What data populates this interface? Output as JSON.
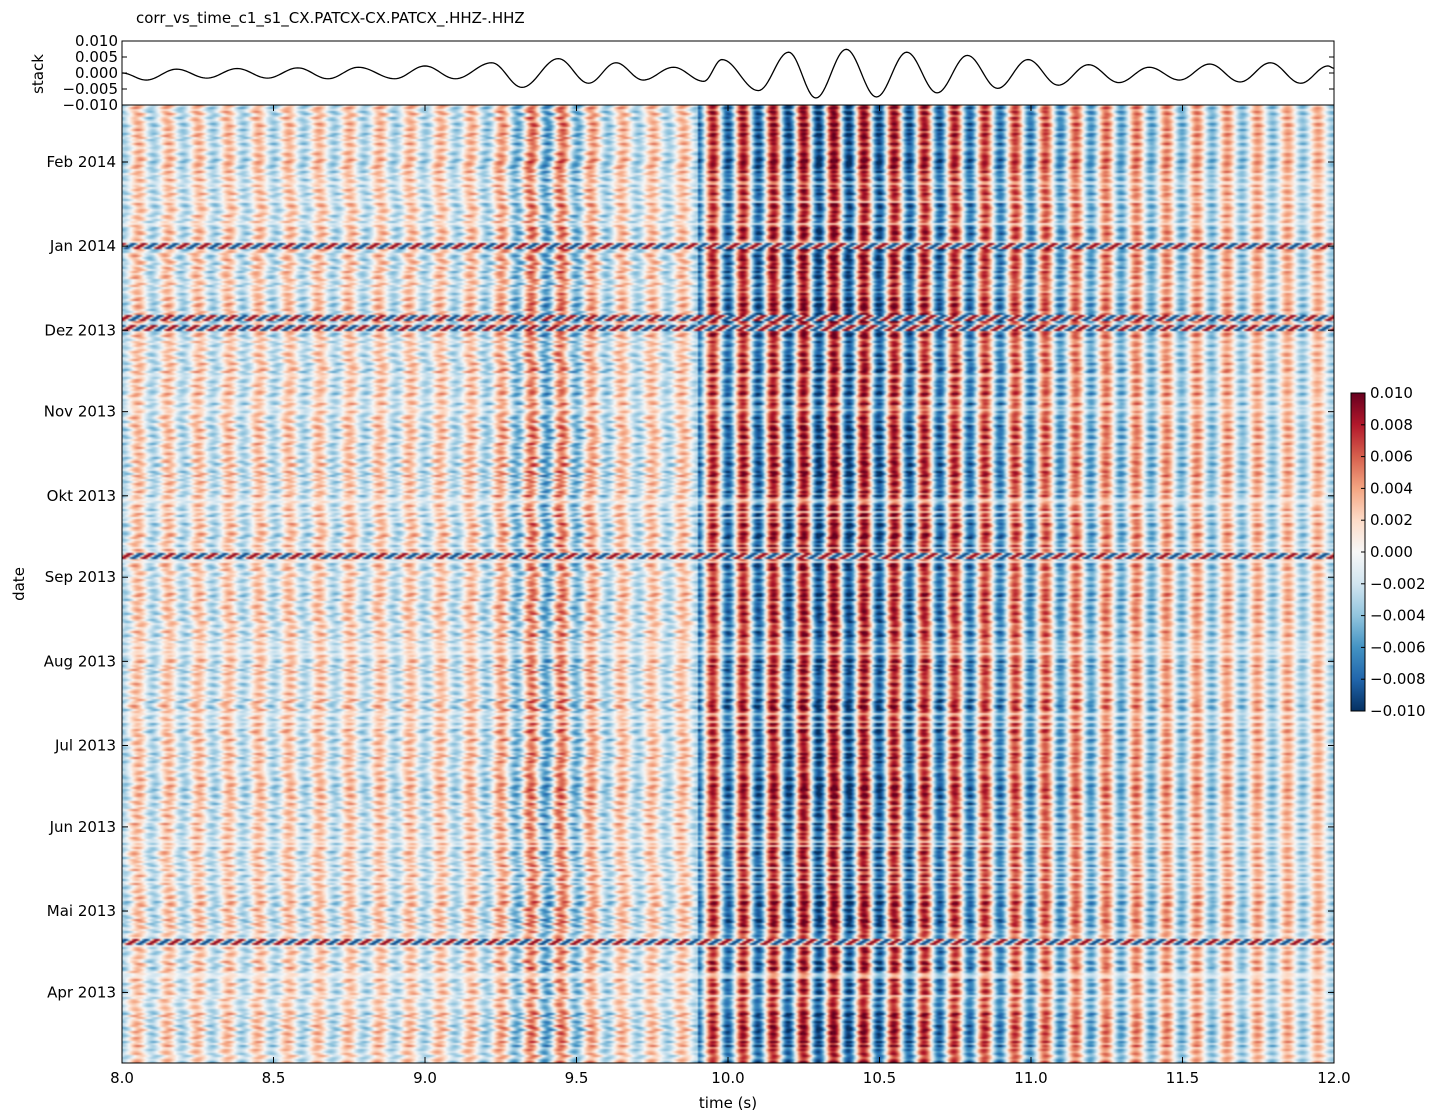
{
  "chart_data": {
    "type": "heatmap",
    "title": "corr_vs_time_c1_s1_CX.PATCX-CX.PATCX_.HHZ-.HHZ",
    "stack_panel": {
      "type": "line",
      "ylabel": "stack",
      "ylim": [
        -0.01,
        0.01
      ],
      "y_ticks": [
        "0.010",
        "0.005",
        "0.000",
        "−0.005",
        "−0.010"
      ],
      "y_tick_values": [
        0.01,
        0.005,
        0.0,
        -0.005,
        -0.01
      ],
      "x_range": [
        8.0,
        12.0
      ],
      "samples": [
        {
          "x": 8.0,
          "y": 0.0
        },
        {
          "x": 8.08,
          "y": -0.0022
        },
        {
          "x": 8.18,
          "y": 0.0012
        },
        {
          "x": 8.28,
          "y": -0.0016
        },
        {
          "x": 8.38,
          "y": 0.0014
        },
        {
          "x": 8.48,
          "y": -0.0016
        },
        {
          "x": 8.58,
          "y": 0.0016
        },
        {
          "x": 8.68,
          "y": -0.0018
        },
        {
          "x": 8.78,
          "y": 0.0018
        },
        {
          "x": 8.9,
          "y": -0.0018
        },
        {
          "x": 9.0,
          "y": 0.0022
        },
        {
          "x": 9.1,
          "y": -0.0018
        },
        {
          "x": 9.22,
          "y": 0.0032
        },
        {
          "x": 9.32,
          "y": -0.0045
        },
        {
          "x": 9.44,
          "y": 0.0045
        },
        {
          "x": 9.54,
          "y": -0.0032
        },
        {
          "x": 9.63,
          "y": 0.0032
        },
        {
          "x": 9.72,
          "y": -0.0022
        },
        {
          "x": 9.82,
          "y": 0.0018
        },
        {
          "x": 9.92,
          "y": -0.0026
        },
        {
          "x": 9.98,
          "y": 0.0042
        },
        {
          "x": 10.1,
          "y": -0.0055
        },
        {
          "x": 10.2,
          "y": 0.0065
        },
        {
          "x": 10.29,
          "y": -0.0078
        },
        {
          "x": 10.39,
          "y": 0.0074
        },
        {
          "x": 10.49,
          "y": -0.0075
        },
        {
          "x": 10.59,
          "y": 0.0065
        },
        {
          "x": 10.69,
          "y": -0.0062
        },
        {
          "x": 10.79,
          "y": 0.0055
        },
        {
          "x": 10.89,
          "y": -0.0048
        },
        {
          "x": 10.99,
          "y": 0.0042
        },
        {
          "x": 11.09,
          "y": -0.0038
        },
        {
          "x": 11.19,
          "y": 0.0026
        },
        {
          "x": 11.29,
          "y": -0.003
        },
        {
          "x": 11.39,
          "y": 0.0018
        },
        {
          "x": 11.49,
          "y": -0.0022
        },
        {
          "x": 11.59,
          "y": 0.0028
        },
        {
          "x": 11.69,
          "y": -0.0028
        },
        {
          "x": 11.79,
          "y": 0.0032
        },
        {
          "x": 11.89,
          "y": -0.0032
        },
        {
          "x": 11.98,
          "y": 0.0022
        },
        {
          "x": 12.0,
          "y": 0.0015
        }
      ]
    },
    "heatmap": {
      "xlabel": "time (s)",
      "ylabel": "date",
      "xlim": [
        8.0,
        12.0
      ],
      "x_ticks": [
        "8.0",
        "8.5",
        "9.0",
        "9.5",
        "10.0",
        "10.5",
        "11.0",
        "11.5",
        "12.0"
      ],
      "x_tick_values": [
        8.0,
        8.5,
        9.0,
        9.5,
        10.0,
        10.5,
        11.0,
        11.5,
        12.0
      ],
      "date_axis_days": [
        0,
        353
      ],
      "y_ticks": [
        "Apr 2013",
        "Mai 2013",
        "Jun 2013",
        "Jul 2013",
        "Aug 2013",
        "Sep 2013",
        "Okt 2013",
        "Nov 2013",
        "Dez 2013",
        "Jan 2014",
        "Feb 2014"
      ],
      "y_tick_days": [
        26,
        56,
        87,
        117,
        148,
        179,
        209,
        240,
        270,
        301,
        332
      ],
      "dominant_period_s": 0.1,
      "coherent_arrival_window_s": [
        9.9,
        11.1
      ],
      "strong_peak_times_s": [
        9.44,
        10.17,
        10.38,
        10.58,
        10.78
      ],
      "strong_trough_times_s": [
        9.33,
        10.07,
        10.28,
        10.48,
        10.68
      ],
      "anomalous_rows_days": [
        44,
        187,
        271,
        275,
        301
      ]
    },
    "colorbar": {
      "colormap": "RdBu_r",
      "range": [
        -0.01,
        0.01
      ],
      "ticks": [
        "0.010",
        "0.008",
        "0.006",
        "0.004",
        "0.002",
        "0.000",
        "−0.002",
        "−0.004",
        "−0.006",
        "−0.008",
        "−0.010"
      ],
      "tick_values": [
        0.01,
        0.008,
        0.006,
        0.004,
        0.002,
        0.0,
        -0.002,
        -0.004,
        -0.006,
        -0.008,
        -0.01
      ],
      "endpoint_colors": {
        "low": "#053061",
        "mid": "#f7f7f7",
        "high": "#67001f"
      }
    }
  }
}
